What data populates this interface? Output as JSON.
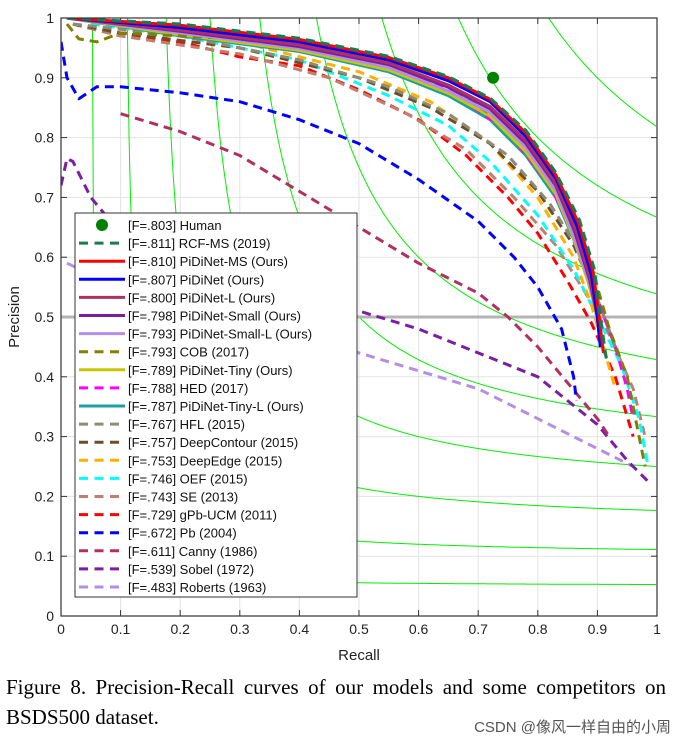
{
  "chart_data": {
    "type": "line",
    "title": "",
    "xlabel": "Recall",
    "ylabel": "Precision",
    "xlim": [
      0,
      1
    ],
    "ylim": [
      0,
      1
    ],
    "xticks": [
      "0",
      "0.1",
      "0.2",
      "0.3",
      "0.4",
      "0.5",
      "0.6",
      "0.7",
      "0.8",
      "0.9",
      "1"
    ],
    "yticks": [
      "0",
      "0.1",
      "0.2",
      "0.3",
      "0.4",
      "0.5",
      "0.6",
      "0.7",
      "0.8",
      "0.9",
      "1"
    ],
    "grid": true,
    "legend_position": "lower-left",
    "iso_f_contours": [
      0.1,
      0.2,
      0.3,
      0.4,
      0.5,
      0.6,
      0.7,
      0.8,
      0.9
    ],
    "iso_f_color": "#00ee00",
    "reference_line_precision": 0.5,
    "human": {
      "label": "[F=.803] Human",
      "recall": 0.725,
      "precision": 0.9,
      "color": "#008000"
    },
    "series": [
      {
        "name": "[F=.811] RCF-MS (2019)",
        "color": "#1b7a50",
        "dash": true,
        "points": [
          [
            0.01,
            1
          ],
          [
            0.2,
            0.99
          ],
          [
            0.4,
            0.966
          ],
          [
            0.55,
            0.936
          ],
          [
            0.65,
            0.902
          ],
          [
            0.72,
            0.866
          ],
          [
            0.78,
            0.812
          ],
          [
            0.83,
            0.742
          ],
          [
            0.87,
            0.662
          ],
          [
            0.895,
            0.58
          ],
          [
            0.905,
            0.5
          ],
          [
            0.915,
            0.43
          ]
        ]
      },
      {
        "name": "[F=.810] PiDiNet-MS (Ours)",
        "color": "#ff0000",
        "dash": false,
        "points": [
          [
            0.01,
            1
          ],
          [
            0.2,
            0.988
          ],
          [
            0.4,
            0.964
          ],
          [
            0.55,
            0.934
          ],
          [
            0.65,
            0.9
          ],
          [
            0.72,
            0.864
          ],
          [
            0.78,
            0.808
          ],
          [
            0.83,
            0.738
          ],
          [
            0.868,
            0.658
          ],
          [
            0.893,
            0.575
          ],
          [
            0.903,
            0.5
          ],
          [
            0.91,
            0.44
          ]
        ]
      },
      {
        "name": "[F=.807] PiDiNet (Ours)",
        "color": "#0000ff",
        "dash": false,
        "points": [
          [
            0.01,
            1
          ],
          [
            0.2,
            0.984
          ],
          [
            0.4,
            0.96
          ],
          [
            0.55,
            0.93
          ],
          [
            0.65,
            0.895
          ],
          [
            0.72,
            0.86
          ],
          [
            0.78,
            0.802
          ],
          [
            0.83,
            0.732
          ],
          [
            0.866,
            0.652
          ],
          [
            0.89,
            0.57
          ],
          [
            0.9,
            0.5
          ],
          [
            0.905,
            0.45
          ]
        ]
      },
      {
        "name": "[F=.800] PiDiNet-L (Ours)",
        "color": "#b03060",
        "dash": false,
        "points": [
          [
            0.01,
            1
          ],
          [
            0.2,
            0.98
          ],
          [
            0.4,
            0.955
          ],
          [
            0.55,
            0.925
          ],
          [
            0.65,
            0.888
          ],
          [
            0.72,
            0.852
          ],
          [
            0.78,
            0.795
          ],
          [
            0.83,
            0.724
          ],
          [
            0.864,
            0.645
          ],
          [
            0.888,
            0.565
          ],
          [
            0.9,
            0.5
          ],
          [
            0.905,
            0.45
          ]
        ]
      },
      {
        "name": "[F=.798] PiDiNet-Small (Ours)",
        "color": "#7b1fa2",
        "dash": false,
        "points": [
          [
            0.01,
            1
          ],
          [
            0.2,
            0.978
          ],
          [
            0.4,
            0.952
          ],
          [
            0.55,
            0.922
          ],
          [
            0.65,
            0.884
          ],
          [
            0.72,
            0.848
          ],
          [
            0.78,
            0.79
          ],
          [
            0.83,
            0.72
          ],
          [
            0.862,
            0.642
          ],
          [
            0.887,
            0.562
          ],
          [
            0.9,
            0.5
          ],
          [
            0.905,
            0.45
          ]
        ]
      },
      {
        "name": "[F=.793] PiDiNet-Small-L (Ours)",
        "color": "#b48ee6",
        "dash": false,
        "points": [
          [
            0.01,
            1
          ],
          [
            0.2,
            0.975
          ],
          [
            0.4,
            0.949
          ],
          [
            0.55,
            0.917
          ],
          [
            0.65,
            0.878
          ],
          [
            0.72,
            0.842
          ],
          [
            0.78,
            0.783
          ],
          [
            0.83,
            0.712
          ],
          [
            0.86,
            0.636
          ],
          [
            0.886,
            0.558
          ],
          [
            0.9,
            0.5
          ],
          [
            0.905,
            0.45
          ]
        ]
      },
      {
        "name": "[F=.793] COB (2017)",
        "color": "#808000",
        "dash": true,
        "points": [
          [
            0.01,
            0.99
          ],
          [
            0.03,
            0.965
          ],
          [
            0.06,
            0.96
          ],
          [
            0.1,
            0.975
          ],
          [
            0.3,
            0.965
          ],
          [
            0.5,
            0.935
          ],
          [
            0.65,
            0.885
          ],
          [
            0.75,
            0.82
          ],
          [
            0.82,
            0.74
          ],
          [
            0.87,
            0.66
          ],
          [
            0.9,
            0.55
          ],
          [
            0.92,
            0.48
          ],
          [
            0.95,
            0.4
          ],
          [
            0.97,
            0.3
          ],
          [
            0.98,
            0.25
          ]
        ]
      },
      {
        "name": "[F=.789] PiDiNet-Tiny (Ours)",
        "color": "#c8c800",
        "dash": false,
        "points": [
          [
            0.01,
            1
          ],
          [
            0.2,
            0.972
          ],
          [
            0.4,
            0.946
          ],
          [
            0.55,
            0.913
          ],
          [
            0.65,
            0.874
          ],
          [
            0.72,
            0.836
          ],
          [
            0.78,
            0.776
          ],
          [
            0.83,
            0.706
          ],
          [
            0.86,
            0.632
          ],
          [
            0.885,
            0.556
          ],
          [
            0.9,
            0.5
          ],
          [
            0.905,
            0.45
          ]
        ]
      },
      {
        "name": "[F=.788] HED (2017)",
        "color": "#ff00ff",
        "dash": true,
        "points": [
          [
            0.01,
            1
          ],
          [
            0.2,
            0.975
          ],
          [
            0.4,
            0.95
          ],
          [
            0.55,
            0.92
          ],
          [
            0.65,
            0.88
          ],
          [
            0.75,
            0.81
          ],
          [
            0.82,
            0.72
          ],
          [
            0.87,
            0.62
          ],
          [
            0.9,
            0.53
          ],
          [
            0.93,
            0.45
          ],
          [
            0.95,
            0.38
          ],
          [
            0.96,
            0.33
          ]
        ]
      },
      {
        "name": "[F=.787] PiDiNet-Tiny-L (Ours)",
        "color": "#1aa0a0",
        "dash": false,
        "points": [
          [
            0.01,
            1
          ],
          [
            0.2,
            0.97
          ],
          [
            0.4,
            0.944
          ],
          [
            0.55,
            0.91
          ],
          [
            0.65,
            0.87
          ],
          [
            0.72,
            0.83
          ],
          [
            0.78,
            0.77
          ],
          [
            0.83,
            0.7
          ],
          [
            0.86,
            0.63
          ],
          [
            0.885,
            0.56
          ],
          [
            0.9,
            0.5
          ],
          [
            0.905,
            0.45
          ]
        ]
      },
      {
        "name": "[F=.767] HFL (2015)",
        "color": "#8c8c78",
        "dash": true,
        "points": [
          [
            0.02,
            0.99
          ],
          [
            0.2,
            0.97
          ],
          [
            0.4,
            0.93
          ],
          [
            0.55,
            0.885
          ],
          [
            0.65,
            0.84
          ],
          [
            0.75,
            0.77
          ],
          [
            0.82,
            0.69
          ],
          [
            0.87,
            0.61
          ],
          [
            0.9,
            0.53
          ],
          [
            0.93,
            0.45
          ]
        ]
      },
      {
        "name": "[F=.757] DeepContour (2015)",
        "color": "#6b4e2a",
        "dash": true,
        "points": [
          [
            0.02,
            0.99
          ],
          [
            0.1,
            0.975
          ],
          [
            0.3,
            0.95
          ],
          [
            0.5,
            0.9
          ],
          [
            0.62,
            0.85
          ],
          [
            0.72,
            0.79
          ],
          [
            0.8,
            0.71
          ],
          [
            0.86,
            0.62
          ],
          [
            0.9,
            0.53
          ],
          [
            0.93,
            0.45
          ]
        ]
      },
      {
        "name": "[F=.753] DeepEdge (2015)",
        "color": "#ffb000",
        "dash": true,
        "points": [
          [
            0.1,
            0.99
          ],
          [
            0.3,
            0.96
          ],
          [
            0.5,
            0.91
          ],
          [
            0.62,
            0.86
          ],
          [
            0.72,
            0.79
          ],
          [
            0.8,
            0.7
          ],
          [
            0.86,
            0.6
          ],
          [
            0.89,
            0.52
          ],
          [
            0.91,
            0.45
          ],
          [
            0.93,
            0.38
          ]
        ]
      },
      {
        "name": "[F=.746] OEF (2015)",
        "color": "#00ffff",
        "dash": true,
        "points": [
          [
            0.05,
            0.99
          ],
          [
            0.2,
            0.97
          ],
          [
            0.4,
            0.93
          ],
          [
            0.55,
            0.87
          ],
          [
            0.65,
            0.82
          ],
          [
            0.72,
            0.76
          ],
          [
            0.8,
            0.67
          ],
          [
            0.86,
            0.58
          ],
          [
            0.9,
            0.5
          ],
          [
            0.94,
            0.42
          ],
          [
            0.97,
            0.33
          ],
          [
            0.985,
            0.25
          ]
        ]
      },
      {
        "name": "[F=.743] SE (2013)",
        "color": "#c08070",
        "dash": true,
        "points": [
          [
            0.02,
            0.99
          ],
          [
            0.1,
            0.97
          ],
          [
            0.3,
            0.94
          ],
          [
            0.45,
            0.9
          ],
          [
            0.58,
            0.84
          ],
          [
            0.68,
            0.78
          ],
          [
            0.76,
            0.7
          ],
          [
            0.83,
            0.62
          ],
          [
            0.88,
            0.54
          ],
          [
            0.92,
            0.47
          ],
          [
            0.96,
            0.38
          ],
          [
            0.98,
            0.3
          ]
        ]
      },
      {
        "name": "[F=.729] gPb-UCM (2011)",
        "color": "#ff0000",
        "dash": true,
        "points": [
          [
            0.02,
            0.99
          ],
          [
            0.1,
            0.97
          ],
          [
            0.2,
            0.96
          ],
          [
            0.3,
            0.935
          ],
          [
            0.4,
            0.92
          ],
          [
            0.5,
            0.88
          ],
          [
            0.6,
            0.83
          ],
          [
            0.68,
            0.77
          ],
          [
            0.75,
            0.7
          ],
          [
            0.8,
            0.64
          ],
          [
            0.85,
            0.56
          ],
          [
            0.89,
            0.49
          ],
          [
            0.93,
            0.4
          ],
          [
            0.96,
            0.3
          ]
        ]
      },
      {
        "name": "[F=.672] Pb (2004)",
        "color": "#0000ff",
        "dash": true,
        "points": [
          [
            0,
            0.96
          ],
          [
            0.01,
            0.9
          ],
          [
            0.03,
            0.865
          ],
          [
            0.06,
            0.885
          ],
          [
            0.1,
            0.885
          ],
          [
            0.2,
            0.875
          ],
          [
            0.3,
            0.86
          ],
          [
            0.4,
            0.83
          ],
          [
            0.5,
            0.79
          ],
          [
            0.6,
            0.73
          ],
          [
            0.7,
            0.66
          ],
          [
            0.76,
            0.6
          ],
          [
            0.8,
            0.55
          ],
          [
            0.84,
            0.48
          ],
          [
            0.86,
            0.4
          ],
          [
            0.865,
            0.36
          ]
        ]
      },
      {
        "name": "[F=.611] Canny (1986)",
        "color": "#b03060",
        "dash": true,
        "points": [
          [
            0.1,
            0.84
          ],
          [
            0.2,
            0.81
          ],
          [
            0.3,
            0.77
          ],
          [
            0.4,
            0.71
          ],
          [
            0.5,
            0.65
          ],
          [
            0.6,
            0.59
          ],
          [
            0.7,
            0.54
          ],
          [
            0.75,
            0.5
          ],
          [
            0.8,
            0.45
          ],
          [
            0.85,
            0.39
          ],
          [
            0.9,
            0.33
          ],
          [
            0.92,
            0.3
          ]
        ]
      },
      {
        "name": "[F=.539] Sobel (1972)",
        "color": "#7b1fa2",
        "dash": true,
        "points": [
          [
            0,
            0.72
          ],
          [
            0.01,
            0.765
          ],
          [
            0.02,
            0.76
          ],
          [
            0.05,
            0.7
          ],
          [
            0.1,
            0.64
          ],
          [
            0.3,
            0.57
          ],
          [
            0.5,
            0.51
          ],
          [
            0.6,
            0.48
          ],
          [
            0.7,
            0.44
          ],
          [
            0.8,
            0.4
          ],
          [
            0.85,
            0.36
          ],
          [
            0.9,
            0.32
          ],
          [
            0.95,
            0.26
          ],
          [
            0.99,
            0.22
          ]
        ]
      },
      {
        "name": "[F=.483] Roberts (1963)",
        "color": "#b48ee6",
        "dash": true,
        "points": [
          [
            0.01,
            0.59
          ],
          [
            0.2,
            0.5
          ],
          [
            0.4,
            0.46
          ],
          [
            0.5,
            0.44
          ],
          [
            0.6,
            0.41
          ],
          [
            0.7,
            0.38
          ],
          [
            0.8,
            0.33
          ],
          [
            0.9,
            0.28
          ],
          [
            0.96,
            0.25
          ]
        ]
      }
    ]
  },
  "caption": "Figure 8. Precision-Recall curves of our models and some competitors on BSDS500 dataset.",
  "watermark": "CSDN @像风一样自由的小周"
}
